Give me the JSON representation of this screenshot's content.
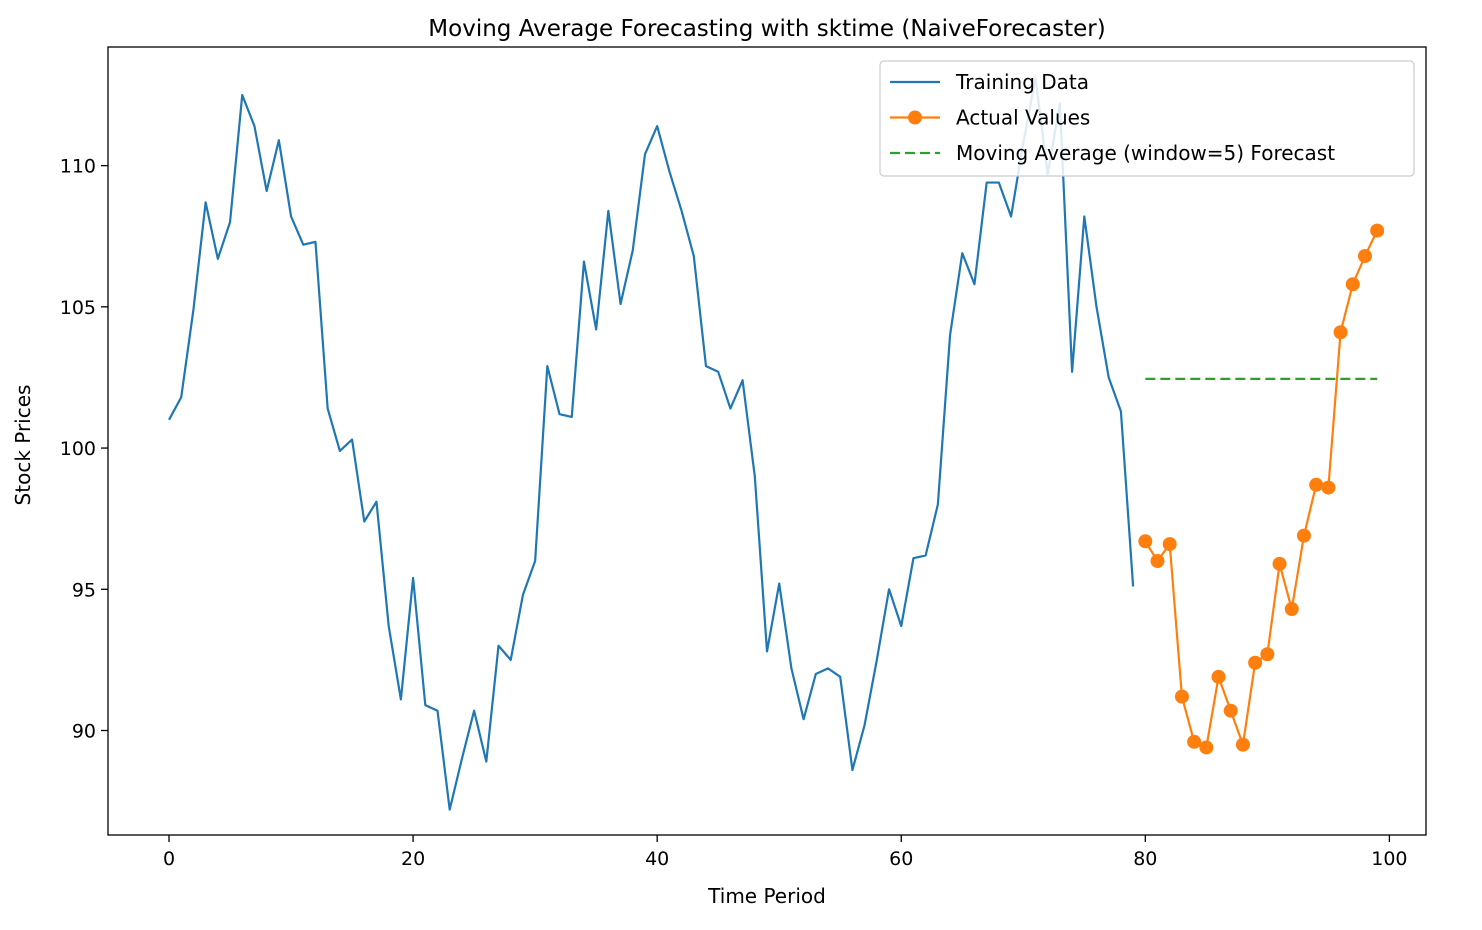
{
  "chart_data": {
    "type": "line",
    "title": "Moving Average Forecasting with sktime (NaiveForecaster)",
    "xlabel": "Time Period",
    "ylabel": "Stock Prices",
    "xlim": [
      -5,
      103
    ],
    "ylim": [
      86.3,
      114.2
    ],
    "xticks": [
      0,
      20,
      40,
      60,
      80,
      100
    ],
    "yticks": [
      90,
      95,
      100,
      105,
      110
    ],
    "grid": false,
    "legend_position": "top-right",
    "series": [
      {
        "name": "Training Data",
        "color": "#1f77b4",
        "style": "solid",
        "marker": "none",
        "x": [
          0,
          1,
          2,
          3,
          4,
          5,
          6,
          7,
          8,
          9,
          10,
          11,
          12,
          13,
          14,
          15,
          16,
          17,
          18,
          19,
          20,
          21,
          22,
          23,
          24,
          25,
          26,
          27,
          28,
          29,
          30,
          31,
          32,
          33,
          34,
          35,
          36,
          37,
          38,
          39,
          40,
          41,
          42,
          43,
          44,
          45,
          46,
          47,
          48,
          49,
          50,
          51,
          52,
          53,
          54,
          55,
          56,
          57,
          58,
          59,
          60,
          61,
          62,
          63,
          64,
          65,
          66,
          67,
          68,
          69,
          70,
          71,
          72,
          73,
          74,
          75,
          76,
          77,
          78,
          79
        ],
        "y": [
          101.0,
          101.8,
          104.9,
          108.7,
          106.7,
          108.0,
          112.5,
          111.4,
          109.1,
          110.9,
          108.2,
          107.2,
          107.3,
          101.4,
          99.9,
          100.3,
          97.4,
          98.1,
          93.7,
          91.1,
          95.4,
          90.9,
          90.7,
          87.2,
          89.0,
          90.7,
          88.9,
          93.0,
          92.5,
          94.8,
          96.0,
          102.9,
          101.2,
          101.1,
          106.6,
          104.2,
          108.4,
          105.1,
          107.0,
          110.4,
          111.4,
          109.8,
          108.4,
          106.8,
          102.9,
          102.7,
          101.4,
          102.4,
          99.0,
          92.8,
          95.2,
          92.2,
          90.4,
          92.0,
          92.2,
          91.9,
          88.6,
          90.2,
          92.5,
          95.0,
          93.7,
          96.1,
          96.2,
          98.0,
          104.0,
          106.9,
          105.8,
          109.4,
          109.4,
          108.2,
          110.8,
          113.1,
          109.7,
          112.2,
          102.7,
          108.2,
          105.0,
          102.5,
          101.3,
          95.1
        ]
      },
      {
        "name": "Actual Values",
        "color": "#ff7f0e",
        "style": "solid",
        "marker": "circle",
        "x": [
          80,
          81,
          82,
          83,
          84,
          85,
          86,
          87,
          88,
          89,
          90,
          91,
          92,
          93,
          94,
          95,
          96,
          97,
          98,
          99
        ],
        "y": [
          96.7,
          96.0,
          96.6,
          91.2,
          89.6,
          89.4,
          91.9,
          90.7,
          89.5,
          92.4,
          92.7,
          95.9,
          94.3,
          96.9,
          98.7,
          98.6,
          104.1,
          105.8,
          106.8,
          107.7
        ]
      },
      {
        "name": "Moving Average (window=5) Forecast",
        "color": "#2ca02c",
        "style": "dashed",
        "marker": "none",
        "x": [
          80,
          81,
          82,
          83,
          84,
          85,
          86,
          87,
          88,
          89,
          90,
          91,
          92,
          93,
          94,
          95,
          96,
          97,
          98,
          99
        ],
        "y": [
          102.45,
          102.45,
          102.45,
          102.45,
          102.45,
          102.45,
          102.45,
          102.45,
          102.45,
          102.45,
          102.45,
          102.45,
          102.45,
          102.45,
          102.45,
          102.45,
          102.45,
          102.45,
          102.45,
          102.45
        ]
      }
    ]
  }
}
